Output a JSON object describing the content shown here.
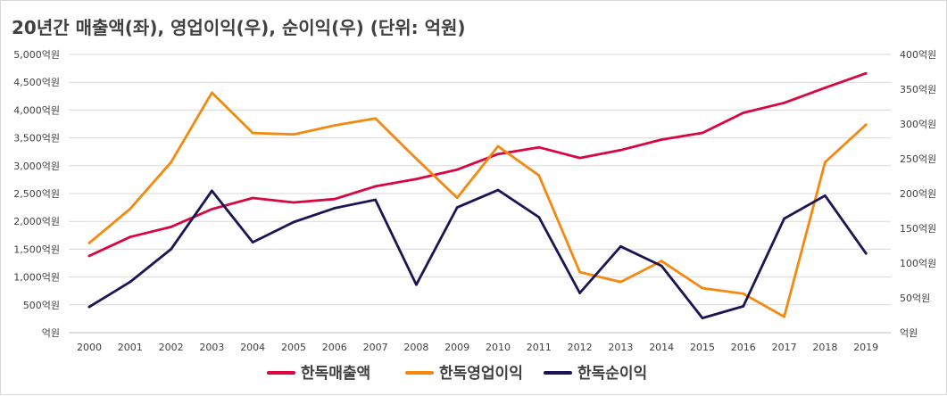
{
  "chart_data": {
    "type": "line",
    "title": "20년간 매출액(좌), 영업이익(우), 순이익(우) (단위: 억원)",
    "categories": [
      "2000",
      "2001",
      "2002",
      "2003",
      "2004",
      "2005",
      "2006",
      "2007",
      "2008",
      "2009",
      "2010",
      "2011",
      "2012",
      "2013",
      "2014",
      "2015",
      "2016",
      "2017",
      "2018",
      "2019"
    ],
    "y_left": {
      "ylim": [
        0,
        5000
      ],
      "ticks": [
        0,
        500,
        1000,
        1500,
        2000,
        2500,
        3000,
        3500,
        4000,
        4500,
        5000
      ],
      "tick_labels": [
        "억원",
        "500억원",
        "1,000억원",
        "1,500억원",
        "2,000억원",
        "2,500억원",
        "3,000억원",
        "3,500억원",
        "4,000억원",
        "4,500억원",
        "5,000억원"
      ]
    },
    "y_right": {
      "ylim": [
        0,
        400
      ],
      "ticks": [
        0,
        50,
        100,
        150,
        200,
        250,
        300,
        350,
        400
      ],
      "tick_labels": [
        "억원",
        "50억원",
        "100억원",
        "150억원",
        "200억원",
        "250억원",
        "300억원",
        "350억원",
        "400억원"
      ]
    },
    "series": [
      {
        "name": "한독매출액",
        "axis": "left",
        "color": "#d9063f",
        "values": [
          1380,
          1720,
          1900,
          2220,
          2420,
          2340,
          2400,
          2630,
          2760,
          2930,
          3210,
          3330,
          3140,
          3280,
          3470,
          3590,
          3950,
          4130,
          4400,
          4660
        ]
      },
      {
        "name": "한독영업이익",
        "axis": "right",
        "color": "#f5880f",
        "values": [
          129,
          178,
          245,
          345,
          287,
          285,
          298,
          308,
          250,
          194,
          268,
          226,
          87,
          73,
          103,
          64,
          56,
          23,
          245,
          299
        ]
      },
      {
        "name": "한독순이익",
        "axis": "right",
        "color": "#1c1553",
        "values": [
          37,
          73,
          120,
          204,
          130,
          159,
          179,
          191,
          69,
          180,
          205,
          166,
          57,
          124,
          96,
          21,
          38,
          164,
          197,
          114
        ]
      }
    ],
    "grid": "horizontal",
    "legend_position": "bottom"
  }
}
